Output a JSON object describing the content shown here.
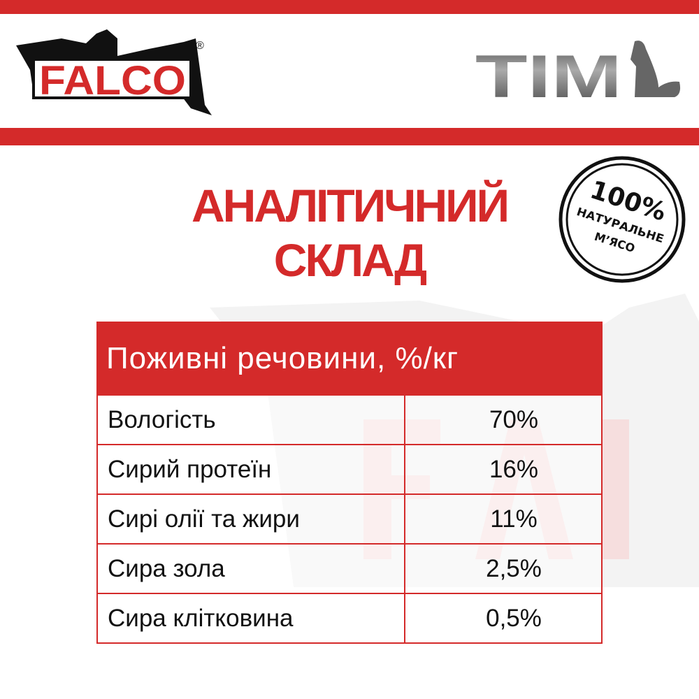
{
  "brand": {
    "left_logo": "FALCO",
    "left_logo_mark": "®",
    "right_logo": "TIM"
  },
  "colors": {
    "accent": "#d42a2a",
    "text": "#111111"
  },
  "title": {
    "line1": "АНАЛІТИЧНИЙ",
    "line2": "СКЛАД"
  },
  "stamp": {
    "line1": "100%",
    "line2": "НАТУРАЛЬНЕ",
    "line3": "М’ЯСО"
  },
  "table": {
    "header": "Поживні речовини, %/кг",
    "rows": [
      {
        "name": "Вологість",
        "value": "70%"
      },
      {
        "name": "Сирий протеїн",
        "value": "16%"
      },
      {
        "name": "Сирі олії та жири",
        "value": "11%"
      },
      {
        "name": "Сира зола",
        "value": "2,5%"
      },
      {
        "name": "Сира клітковина",
        "value": "0,5%"
      }
    ]
  }
}
